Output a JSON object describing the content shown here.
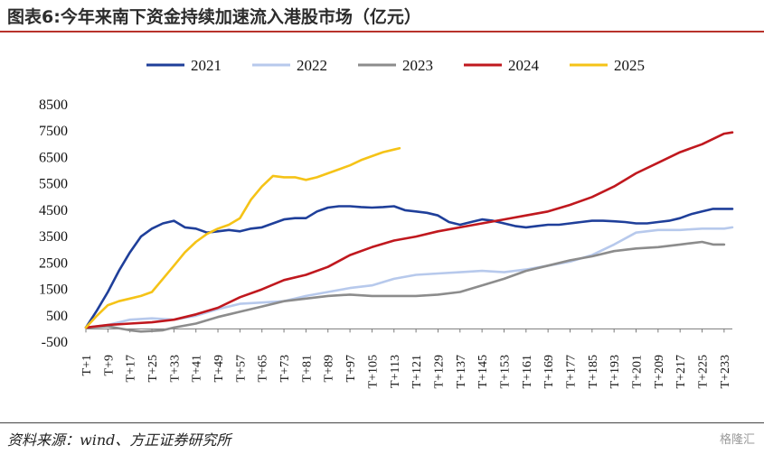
{
  "header": {
    "title": "图表6:今年来南下资金持续加速流入港股市场（亿元）"
  },
  "footer": {
    "source": "资料来源：wind、方正证券研究所",
    "watermark": "格隆汇"
  },
  "chart_data": {
    "type": "line",
    "title": "图表6:今年来南下资金持续加速流入港股市场（亿元）",
    "xlabel": "",
    "ylabel": "",
    "ylim": [
      -500,
      8500
    ],
    "yticks": [
      "8500",
      "7500",
      "6500",
      "5500",
      "4500",
      "3500",
      "2500",
      "1500",
      "500",
      "-500"
    ],
    "xticks": [
      "T+1",
      "T+9",
      "T+17",
      "T+25",
      "T+33",
      "T+41",
      "T+49",
      "T+57",
      "T+65",
      "T+73",
      "T+81",
      "T+89",
      "T+97",
      "T+105",
      "T+113",
      "T+121",
      "T+129",
      "T+137",
      "T+145",
      "T+153",
      "T+161",
      "T+169",
      "T+177",
      "T+185",
      "T+193",
      "T+201",
      "T+209",
      "T+217",
      "T+225",
      "T+233"
    ],
    "xlim": [
      1,
      236
    ],
    "legend_position": "top",
    "series": [
      {
        "name": "2021",
        "color": "#1f3f9a",
        "x": [
          1,
          5,
          9,
          13,
          17,
          21,
          25,
          29,
          33,
          37,
          41,
          45,
          49,
          53,
          57,
          61,
          65,
          69,
          73,
          77,
          81,
          85,
          89,
          93,
          97,
          101,
          105,
          109,
          113,
          117,
          121,
          125,
          129,
          133,
          137,
          141,
          145,
          149,
          153,
          157,
          161,
          165,
          169,
          173,
          177,
          181,
          185,
          189,
          193,
          197,
          201,
          205,
          209,
          213,
          217,
          221,
          225,
          229,
          233,
          236
        ],
        "y": [
          50,
          700,
          1400,
          2200,
          2900,
          3500,
          3800,
          4000,
          4100,
          3850,
          3800,
          3650,
          3700,
          3750,
          3700,
          3800,
          3850,
          4000,
          4150,
          4200,
          4200,
          4450,
          4600,
          4650,
          4650,
          4620,
          4600,
          4620,
          4650,
          4500,
          4450,
          4400,
          4300,
          4050,
          3950,
          4050,
          4150,
          4100,
          4000,
          3900,
          3850,
          3900,
          3950,
          3950,
          4000,
          4050,
          4100,
          4100,
          4080,
          4050,
          4000,
          4000,
          4050,
          4100,
          4200,
          4350,
          4450,
          4550,
          4550,
          4550
        ]
      },
      {
        "name": "2022",
        "color": "#b7c9ec",
        "x": [
          1,
          9,
          17,
          25,
          33,
          41,
          49,
          57,
          65,
          73,
          81,
          89,
          97,
          105,
          113,
          121,
          129,
          137,
          145,
          153,
          161,
          169,
          177,
          185,
          193,
          201,
          209,
          217,
          225,
          233,
          236
        ],
        "y": [
          50,
          150,
          350,
          400,
          350,
          500,
          750,
          950,
          1000,
          1050,
          1250,
          1400,
          1550,
          1650,
          1900,
          2050,
          2100,
          2150,
          2200,
          2150,
          2250,
          2400,
          2550,
          2800,
          3200,
          3650,
          3750,
          3750,
          3800,
          3800,
          3850
        ]
      },
      {
        "name": "2023",
        "color": "#8c8c8c",
        "x": [
          1,
          9,
          17,
          21,
          25,
          29,
          33,
          41,
          49,
          57,
          65,
          73,
          81,
          89,
          97,
          105,
          113,
          121,
          129,
          137,
          145,
          153,
          161,
          169,
          177,
          185,
          193,
          201,
          209,
          217,
          221,
          225,
          229,
          233
        ],
        "y": [
          50,
          100,
          -50,
          -100,
          -80,
          -50,
          50,
          200,
          450,
          650,
          850,
          1050,
          1150,
          1250,
          1300,
          1250,
          1250,
          1250,
          1300,
          1400,
          1650,
          1900,
          2200,
          2400,
          2600,
          2750,
          2950,
          3050,
          3100,
          3200,
          3250,
          3300,
          3200,
          3200
        ]
      },
      {
        "name": "2024",
        "color": "#c0181e",
        "x": [
          1,
          9,
          17,
          25,
          33,
          41,
          49,
          57,
          65,
          73,
          81,
          89,
          97,
          105,
          113,
          121,
          129,
          137,
          145,
          153,
          161,
          169,
          177,
          185,
          193,
          201,
          209,
          217,
          225,
          233,
          236
        ],
        "y": [
          50,
          150,
          200,
          250,
          350,
          550,
          800,
          1200,
          1500,
          1850,
          2050,
          2350,
          2800,
          3100,
          3350,
          3500,
          3700,
          3850,
          4000,
          4150,
          4300,
          4450,
          4700,
          5000,
          5400,
          5900,
          6300,
          6700,
          7000,
          7400,
          7450
        ]
      },
      {
        "name": "2025",
        "color": "#f5c317",
        "x": [
          1,
          5,
          9,
          13,
          17,
          21,
          25,
          29,
          33,
          37,
          41,
          45,
          49,
          53,
          57,
          61,
          65,
          69,
          73,
          77,
          81,
          85,
          89,
          93,
          97,
          101,
          105,
          109,
          113,
          115
        ],
        "y": [
          50,
          500,
          900,
          1050,
          1150,
          1250,
          1400,
          1900,
          2400,
          2900,
          3300,
          3600,
          3800,
          3950,
          4200,
          4900,
          5400,
          5800,
          5750,
          5750,
          5650,
          5750,
          5900,
          6050,
          6200,
          6400,
          6550,
          6700,
          6800,
          6850
        ]
      }
    ]
  }
}
